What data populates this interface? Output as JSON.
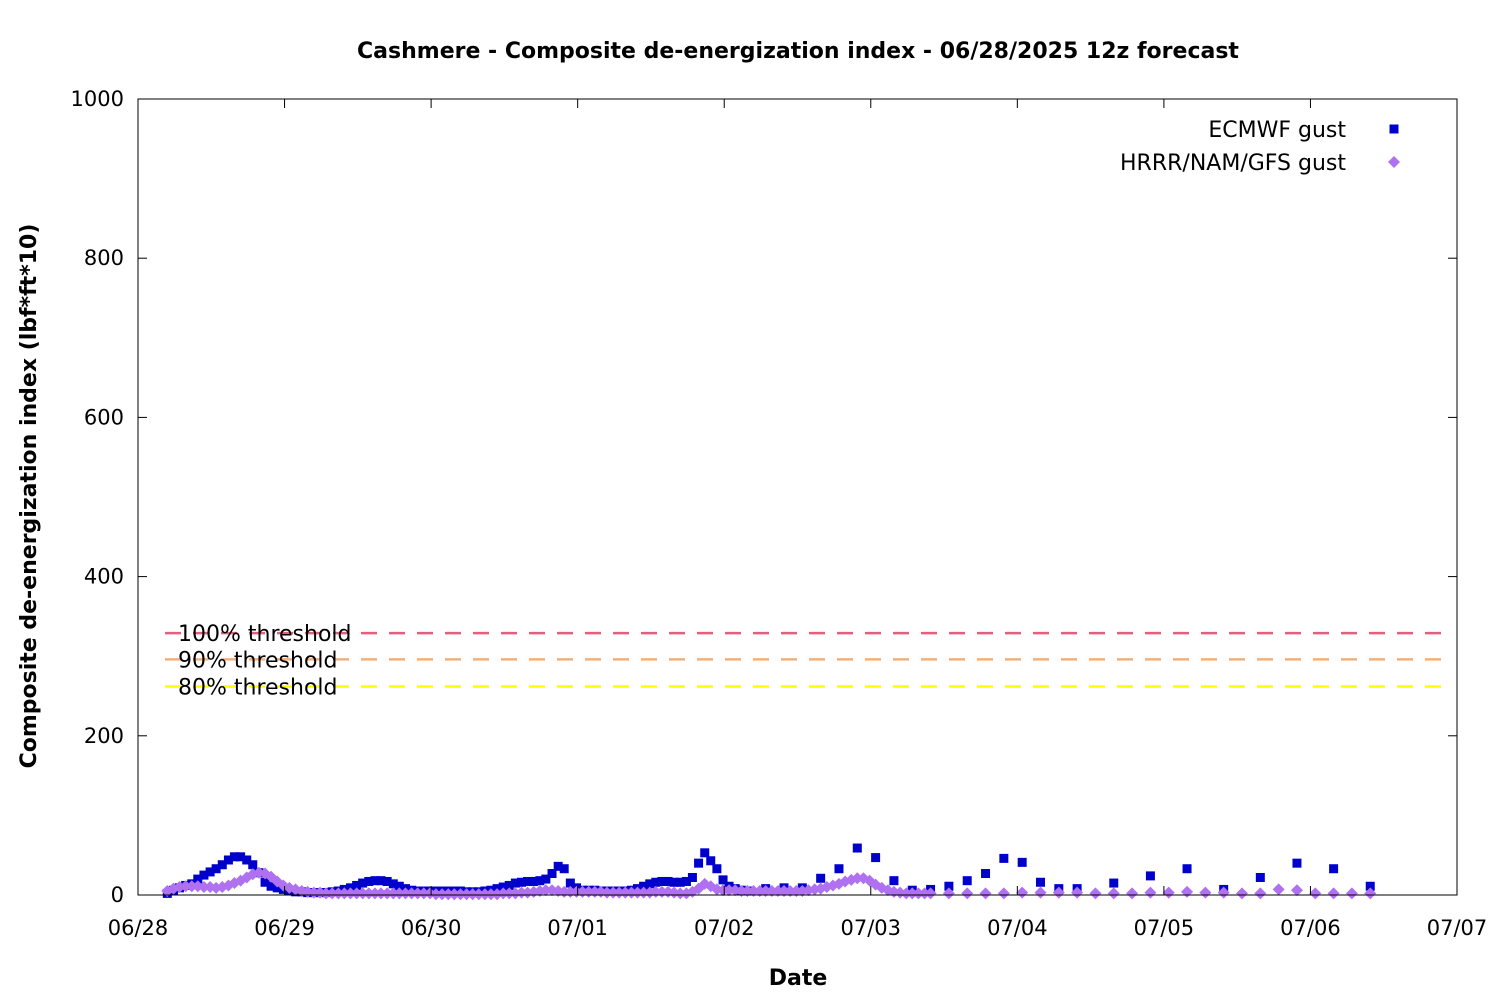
{
  "chart_data": {
    "type": "scatter",
    "title": "Cashmere - Composite de-energization index - 06/28/2025 12z forecast",
    "xlabel": "Date",
    "ylabel": "Composite de-energization index (lbf*ft*10)",
    "x_ticks": [
      "06/28",
      "06/29",
      "06/30",
      "07/01",
      "07/02",
      "07/03",
      "07/04",
      "07/05",
      "07/06",
      "07/07"
    ],
    "x_range_days": [
      0,
      9
    ],
    "ylim": [
      0,
      1000
    ],
    "y_ticks": [
      0,
      200,
      400,
      600,
      800,
      1000
    ],
    "legend_position": "top-right",
    "series": [
      {
        "name": "ECMWF gust",
        "color": "#0000cc",
        "marker": "square",
        "points": [
          [
            0.0,
            2
          ],
          [
            0.042,
            6
          ],
          [
            0.083,
            9
          ],
          [
            0.125,
            12
          ],
          [
            0.167,
            14
          ],
          [
            0.208,
            20
          ],
          [
            0.25,
            25
          ],
          [
            0.292,
            29
          ],
          [
            0.333,
            33
          ],
          [
            0.375,
            38
          ],
          [
            0.417,
            44
          ],
          [
            0.458,
            48
          ],
          [
            0.5,
            48
          ],
          [
            0.542,
            44
          ],
          [
            0.583,
            38
          ],
          [
            0.625,
            28
          ],
          [
            0.667,
            16
          ],
          [
            0.708,
            11
          ],
          [
            0.75,
            9
          ],
          [
            0.792,
            7
          ],
          [
            0.833,
            5
          ],
          [
            0.875,
            4
          ],
          [
            0.917,
            4
          ],
          [
            0.958,
            3
          ],
          [
            1.0,
            3
          ],
          [
            1.042,
            3
          ],
          [
            1.083,
            3
          ],
          [
            1.125,
            4
          ],
          [
            1.167,
            5
          ],
          [
            1.208,
            7
          ],
          [
            1.25,
            9
          ],
          [
            1.292,
            12
          ],
          [
            1.333,
            15
          ],
          [
            1.375,
            17
          ],
          [
            1.417,
            18
          ],
          [
            1.458,
            18
          ],
          [
            1.5,
            17
          ],
          [
            1.542,
            14
          ],
          [
            1.583,
            11
          ],
          [
            1.625,
            8
          ],
          [
            1.667,
            6
          ],
          [
            1.708,
            5
          ],
          [
            1.75,
            5
          ],
          [
            1.792,
            5
          ],
          [
            1.833,
            5
          ],
          [
            1.875,
            5
          ],
          [
            1.917,
            5
          ],
          [
            1.958,
            5
          ],
          [
            2.0,
            5
          ],
          [
            2.042,
            4
          ],
          [
            2.083,
            4
          ],
          [
            2.125,
            4
          ],
          [
            2.167,
            5
          ],
          [
            2.208,
            6
          ],
          [
            2.25,
            8
          ],
          [
            2.292,
            10
          ],
          [
            2.333,
            12
          ],
          [
            2.375,
            15
          ],
          [
            2.417,
            16
          ],
          [
            2.458,
            17
          ],
          [
            2.5,
            17
          ],
          [
            2.542,
            18
          ],
          [
            2.583,
            20
          ],
          [
            2.625,
            27
          ],
          [
            2.667,
            36
          ],
          [
            2.708,
            33
          ],
          [
            2.75,
            15
          ],
          [
            2.792,
            9
          ],
          [
            2.833,
            6
          ],
          [
            2.875,
            6
          ],
          [
            2.917,
            6
          ],
          [
            2.958,
            5
          ],
          [
            3.0,
            5
          ],
          [
            3.042,
            5
          ],
          [
            3.083,
            5
          ],
          [
            3.125,
            5
          ],
          [
            3.167,
            6
          ],
          [
            3.208,
            8
          ],
          [
            3.25,
            11
          ],
          [
            3.292,
            14
          ],
          [
            3.333,
            16
          ],
          [
            3.375,
            17
          ],
          [
            3.417,
            17
          ],
          [
            3.458,
            16
          ],
          [
            3.5,
            16
          ],
          [
            3.542,
            17
          ],
          [
            3.583,
            22
          ],
          [
            3.625,
            40
          ],
          [
            3.667,
            53
          ],
          [
            3.708,
            43
          ],
          [
            3.75,
            33
          ],
          [
            3.792,
            19
          ],
          [
            3.833,
            11
          ],
          [
            3.875,
            8
          ],
          [
            3.917,
            6
          ],
          [
            3.958,
            5
          ],
          [
            4.083,
            8
          ],
          [
            4.208,
            9
          ],
          [
            4.333,
            9
          ],
          [
            4.458,
            21
          ],
          [
            4.583,
            33
          ],
          [
            4.708,
            59
          ],
          [
            4.833,
            47
          ],
          [
            4.958,
            18
          ],
          [
            5.083,
            6
          ],
          [
            5.208,
            7
          ],
          [
            5.333,
            11
          ],
          [
            5.458,
            18
          ],
          [
            5.583,
            27
          ],
          [
            5.708,
            46
          ],
          [
            5.833,
            41
          ],
          [
            5.958,
            16
          ],
          [
            6.083,
            8
          ],
          [
            6.208,
            8
          ],
          [
            6.458,
            15
          ],
          [
            6.708,
            24
          ],
          [
            6.958,
            33
          ],
          [
            7.208,
            7
          ],
          [
            7.458,
            22
          ],
          [
            7.708,
            40
          ],
          [
            7.958,
            33
          ],
          [
            8.208,
            11
          ]
        ]
      },
      {
        "name": "HRRR/NAM/GFS gust",
        "color": "#b071f0",
        "marker": "diamond",
        "points": [
          [
            0.0,
            5
          ],
          [
            0.042,
            8
          ],
          [
            0.083,
            10
          ],
          [
            0.125,
            11
          ],
          [
            0.167,
            11
          ],
          [
            0.208,
            11
          ],
          [
            0.25,
            10
          ],
          [
            0.292,
            10
          ],
          [
            0.333,
            9
          ],
          [
            0.375,
            10
          ],
          [
            0.417,
            12
          ],
          [
            0.458,
            15
          ],
          [
            0.5,
            18
          ],
          [
            0.542,
            22
          ],
          [
            0.583,
            26
          ],
          [
            0.625,
            28
          ],
          [
            0.667,
            27
          ],
          [
            0.708,
            23
          ],
          [
            0.75,
            17
          ],
          [
            0.792,
            12
          ],
          [
            0.833,
            9
          ],
          [
            0.875,
            7
          ],
          [
            0.917,
            5
          ],
          [
            0.958,
            4
          ],
          [
            1.0,
            3
          ],
          [
            1.042,
            3
          ],
          [
            1.083,
            2
          ],
          [
            1.125,
            2
          ],
          [
            1.167,
            2
          ],
          [
            1.208,
            2
          ],
          [
            1.25,
            2
          ],
          [
            1.292,
            2
          ],
          [
            1.333,
            2
          ],
          [
            1.375,
            2
          ],
          [
            1.417,
            2
          ],
          [
            1.458,
            2
          ],
          [
            1.5,
            2
          ],
          [
            1.542,
            2
          ],
          [
            1.583,
            2
          ],
          [
            1.625,
            2
          ],
          [
            1.667,
            2
          ],
          [
            1.708,
            2
          ],
          [
            1.75,
            2
          ],
          [
            1.792,
            2
          ],
          [
            1.833,
            1
          ],
          [
            1.875,
            1
          ],
          [
            1.917,
            1
          ],
          [
            1.958,
            1
          ],
          [
            2.0,
            1
          ],
          [
            2.042,
            1
          ],
          [
            2.083,
            1
          ],
          [
            2.125,
            1
          ],
          [
            2.167,
            1
          ],
          [
            2.208,
            1
          ],
          [
            2.25,
            1
          ],
          [
            2.292,
            2
          ],
          [
            2.333,
            2
          ],
          [
            2.375,
            2
          ],
          [
            2.417,
            3
          ],
          [
            2.458,
            3
          ],
          [
            2.5,
            4
          ],
          [
            2.542,
            5
          ],
          [
            2.583,
            6
          ],
          [
            2.625,
            6
          ],
          [
            2.667,
            5
          ],
          [
            2.708,
            4
          ],
          [
            2.75,
            4
          ],
          [
            2.792,
            4
          ],
          [
            2.833,
            4
          ],
          [
            2.875,
            4
          ],
          [
            2.917,
            4
          ],
          [
            2.958,
            4
          ],
          [
            3.0,
            3
          ],
          [
            3.042,
            3
          ],
          [
            3.083,
            3
          ],
          [
            3.125,
            3
          ],
          [
            3.167,
            3
          ],
          [
            3.208,
            3
          ],
          [
            3.25,
            3
          ],
          [
            3.292,
            3
          ],
          [
            3.333,
            4
          ],
          [
            3.375,
            4
          ],
          [
            3.417,
            4
          ],
          [
            3.458,
            3
          ],
          [
            3.5,
            2
          ],
          [
            3.542,
            2
          ],
          [
            3.583,
            4
          ],
          [
            3.625,
            8
          ],
          [
            3.667,
            14
          ],
          [
            3.708,
            11
          ],
          [
            3.75,
            7
          ],
          [
            3.792,
            6
          ],
          [
            3.833,
            6
          ],
          [
            3.875,
            6
          ],
          [
            3.917,
            5
          ],
          [
            3.958,
            5
          ],
          [
            4.0,
            5
          ],
          [
            4.042,
            5
          ],
          [
            4.083,
            5
          ],
          [
            4.125,
            5
          ],
          [
            4.167,
            5
          ],
          [
            4.208,
            5
          ],
          [
            4.25,
            5
          ],
          [
            4.292,
            5
          ],
          [
            4.333,
            5
          ],
          [
            4.375,
            6
          ],
          [
            4.417,
            7
          ],
          [
            4.458,
            8
          ],
          [
            4.5,
            10
          ],
          [
            4.542,
            12
          ],
          [
            4.583,
            14
          ],
          [
            4.625,
            17
          ],
          [
            4.667,
            19
          ],
          [
            4.708,
            21
          ],
          [
            4.75,
            21
          ],
          [
            4.792,
            18
          ],
          [
            4.833,
            13
          ],
          [
            4.875,
            9
          ],
          [
            4.917,
            6
          ],
          [
            4.958,
            4
          ],
          [
            5.0,
            3
          ],
          [
            5.042,
            2
          ],
          [
            5.083,
            2
          ],
          [
            5.125,
            2
          ],
          [
            5.167,
            2
          ],
          [
            5.208,
            2
          ],
          [
            5.333,
            2
          ],
          [
            5.458,
            2
          ],
          [
            5.583,
            2
          ],
          [
            5.708,
            2
          ],
          [
            5.833,
            3
          ],
          [
            5.958,
            3
          ],
          [
            6.083,
            3
          ],
          [
            6.208,
            3
          ],
          [
            6.333,
            2
          ],
          [
            6.458,
            2
          ],
          [
            6.583,
            2
          ],
          [
            6.708,
            3
          ],
          [
            6.833,
            3
          ],
          [
            6.958,
            4
          ],
          [
            7.083,
            3
          ],
          [
            7.208,
            3
          ],
          [
            7.333,
            2
          ],
          [
            7.458,
            2
          ],
          [
            7.583,
            7
          ],
          [
            7.708,
            6
          ],
          [
            7.833,
            2
          ],
          [
            7.958,
            2
          ],
          [
            8.083,
            2
          ],
          [
            8.208,
            2
          ]
        ]
      }
    ],
    "thresholds": [
      {
        "label": "100% threshold",
        "value": 329,
        "color": "#e0607e"
      },
      {
        "label": "90% threshold",
        "value": 296,
        "color": "#f5b079"
      },
      {
        "label": "80% threshold",
        "value": 262,
        "color": "#ffff00"
      }
    ]
  }
}
